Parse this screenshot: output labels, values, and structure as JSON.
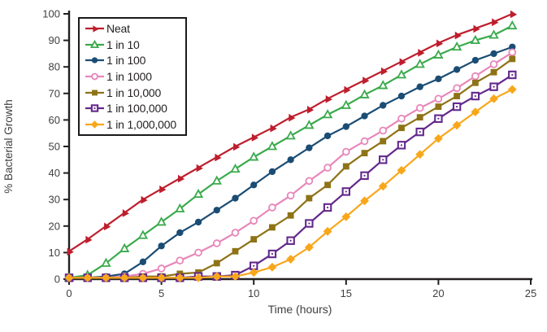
{
  "chart_data": {
    "type": "line",
    "title": "",
    "xlabel": "Time (hours)",
    "ylabel": "% Bacterial Growth",
    "xlim": [
      0,
      25
    ],
    "ylim": [
      0,
      100
    ],
    "x_ticks": [
      0,
      5,
      10,
      15,
      20,
      25
    ],
    "y_ticks": [
      0,
      10,
      20,
      30,
      40,
      50,
      60,
      70,
      80,
      90,
      100
    ],
    "grid": false,
    "legend_position": "upper-left-inside",
    "axis_color": "#231f20",
    "text_color": "#414042",
    "x": [
      0,
      1,
      2,
      3,
      4,
      5,
      6,
      7,
      8,
      9,
      10,
      11,
      12,
      13,
      14,
      15,
      16,
      17,
      18,
      19,
      20,
      21,
      22,
      23,
      24
    ],
    "series": [
      {
        "name": "Neat",
        "color": "#be1e2d",
        "marker": "triangle-filled",
        "values": [
          10.5,
          15,
          20,
          25,
          30,
          34,
          38,
          42,
          46,
          50,
          53.5,
          57,
          61,
          64,
          68,
          71.5,
          75,
          78.5,
          82,
          85.5,
          89,
          92,
          94.5,
          97,
          100
        ]
      },
      {
        "name": "1 in 10",
        "color": "#3aaa4c",
        "marker": "triangle-open",
        "values": [
          0.5,
          1.5,
          6,
          11.5,
          16.5,
          21.5,
          26.5,
          32,
          37,
          41.5,
          46,
          50,
          54,
          58,
          62,
          65.5,
          69.5,
          73,
          77,
          81,
          84.5,
          87.5,
          90,
          92,
          95.5
        ]
      },
      {
        "name": "1 in 100",
        "color": "#1b4d74",
        "marker": "circle-filled",
        "values": [
          0.5,
          0.5,
          1,
          2,
          6.5,
          12.5,
          17.5,
          21.5,
          26,
          30.5,
          35.5,
          40.5,
          45,
          49.5,
          54,
          57.5,
          61.5,
          65.5,
          69,
          72.5,
          75.5,
          79,
          82.5,
          85,
          87.5
        ]
      },
      {
        "name": "1 in 1000",
        "color": "#e887ba",
        "marker": "circle-open",
        "values": [
          0.5,
          0.5,
          0.5,
          1,
          2,
          4,
          7,
          10,
          13.5,
          17.5,
          22,
          27,
          31.5,
          37,
          42,
          48,
          52,
          56,
          60.5,
          64.5,
          68,
          72,
          76.5,
          81,
          85.5
        ]
      },
      {
        "name": "1 in 10,000",
        "color": "#8e7316",
        "marker": "square-filled",
        "values": [
          0.5,
          0.5,
          0.5,
          0.5,
          1,
          1,
          2,
          2.5,
          6,
          10.5,
          15,
          19.5,
          24,
          30.5,
          35.5,
          42.5,
          47.5,
          52,
          57,
          61,
          65,
          69,
          74,
          78,
          83
        ]
      },
      {
        "name": "1 in 100,000",
        "color": "#63298c",
        "marker": "square-open",
        "values": [
          0.5,
          0.5,
          0.5,
          0.5,
          0.5,
          0.5,
          0.5,
          1,
          1,
          1.5,
          5,
          9.5,
          14.5,
          21,
          27,
          33,
          39,
          45,
          50.5,
          55.5,
          60.5,
          65,
          69,
          72.5,
          77
        ]
      },
      {
        "name": "1 in 1,000,000",
        "color": "#f8a71b",
        "marker": "diamond-filled",
        "values": [
          0.5,
          0.5,
          0.5,
          0.5,
          0.5,
          0.5,
          0.5,
          0.5,
          1,
          1,
          2.5,
          4.5,
          7.5,
          12,
          18,
          23.5,
          29.5,
          35,
          41,
          47,
          53,
          58,
          63,
          68,
          71.5
        ]
      }
    ]
  }
}
